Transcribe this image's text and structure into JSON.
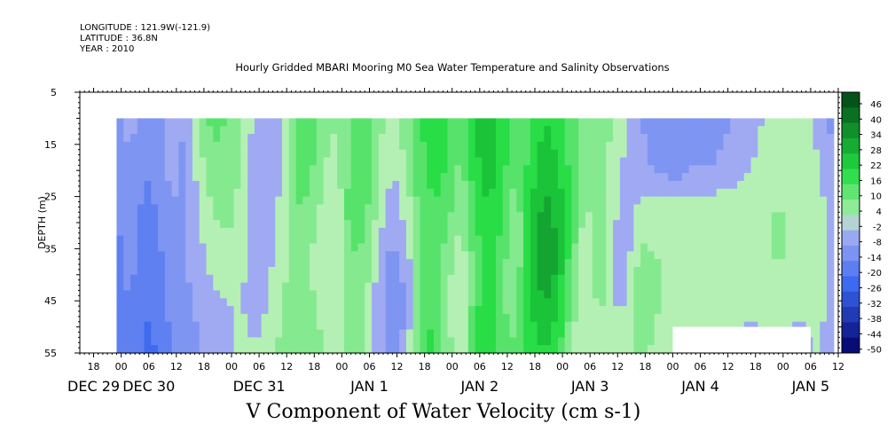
{
  "header": {
    "longitude": "LONGITUDE : 121.9W(-121.9)",
    "latitude": "LATITUDE : 36.8N",
    "year": "YEAR : 2010"
  },
  "chart_data": {
    "type": "heatmap",
    "title": "Hourly Gridded MBARI Mooring M0 Sea Water Temperature and Salinity Observations",
    "xlabel": "V Component of Water Velocity (cm s-1)",
    "ylabel": "DEPTH (m)",
    "x_range_hours": [
      -9,
      156
    ],
    "y_range_depth": [
      5,
      55
    ],
    "y_ticks": [
      5,
      15,
      25,
      35,
      45,
      55
    ],
    "x_hour_ticks": [
      {
        "h": -6,
        "label": "18"
      },
      {
        "h": 0,
        "label": "00"
      },
      {
        "h": 6,
        "label": "06"
      },
      {
        "h": 12,
        "label": "12"
      },
      {
        "h": 18,
        "label": "18"
      },
      {
        "h": 24,
        "label": "00"
      },
      {
        "h": 30,
        "label": "06"
      },
      {
        "h": 36,
        "label": "12"
      },
      {
        "h": 42,
        "label": "18"
      },
      {
        "h": 48,
        "label": "00"
      },
      {
        "h": 54,
        "label": "06"
      },
      {
        "h": 60,
        "label": "12"
      },
      {
        "h": 66,
        "label": "18"
      },
      {
        "h": 72,
        "label": "00"
      },
      {
        "h": 78,
        "label": "06"
      },
      {
        "h": 84,
        "label": "12"
      },
      {
        "h": 90,
        "label": "18"
      },
      {
        "h": 96,
        "label": "00"
      },
      {
        "h": 102,
        "label": "06"
      },
      {
        "h": 108,
        "label": "12"
      },
      {
        "h": 114,
        "label": "18"
      },
      {
        "h": 120,
        "label": "00"
      },
      {
        "h": 126,
        "label": "06"
      },
      {
        "h": 132,
        "label": "12"
      },
      {
        "h": 138,
        "label": "18"
      },
      {
        "h": 144,
        "label": "00"
      },
      {
        "h": 150,
        "label": "06"
      },
      {
        "h": 156,
        "label": "12"
      }
    ],
    "x_day_labels": [
      {
        "h": -6,
        "label": "DEC 29"
      },
      {
        "h": 6,
        "label": "DEC 30"
      },
      {
        "h": 30,
        "label": "DEC 31"
      },
      {
        "h": 54,
        "label": "JAN  1"
      },
      {
        "h": 78,
        "label": "JAN  2"
      },
      {
        "h": 102,
        "label": "JAN  3"
      },
      {
        "h": 126,
        "label": "JAN  4"
      },
      {
        "h": 150,
        "label": "JAN  5"
      }
    ],
    "colorbar_labels": [
      "46",
      "40",
      "34",
      "28",
      "22",
      "16",
      "10",
      "4",
      "-2",
      "-8",
      "-14",
      "-20",
      "-26",
      "-32",
      "-38",
      "-44",
      "-50"
    ],
    "colorbar_range": [
      -50,
      50
    ],
    "colorbar_colors": {
      "min": "#000066",
      "neg_mid": "#3a68f0",
      "near_zero_neg": "#b4b8f4",
      "near_zero_pos": "#b4f0b4",
      "pos_mid": "#20dc40",
      "max": "#004416"
    },
    "data_time_range_hours": [
      -1,
      155
    ],
    "data_depth_range": [
      10,
      55
    ],
    "time_slices": [
      {
        "h": -1,
        "v": [
          -10,
          -12,
          -14,
          -16,
          -16,
          -16
        ]
      },
      {
        "h": 2,
        "v": [
          -6,
          -8,
          -10,
          -12,
          -14,
          -14
        ]
      },
      {
        "h": 5,
        "v": [
          -12,
          -14,
          -16,
          -18,
          -20,
          -22
        ]
      },
      {
        "h": 8,
        "v": [
          -10,
          -12,
          -14,
          -16,
          -18,
          -20
        ]
      },
      {
        "h": 11,
        "v": [
          -4,
          -6,
          -8,
          -10,
          -12,
          -14
        ]
      },
      {
        "h": 14,
        "v": [
          -8,
          -10,
          -10,
          -8,
          -10,
          -14
        ]
      },
      {
        "h": 17,
        "v": [
          6,
          2,
          -2,
          -4,
          -6,
          -8
        ]
      },
      {
        "h": 20,
        "v": [
          12,
          8,
          4,
          0,
          -4,
          -6
        ]
      },
      {
        "h": 23,
        "v": [
          10,
          8,
          6,
          2,
          -2,
          -4
        ]
      },
      {
        "h": 26,
        "v": [
          6,
          4,
          2,
          0,
          -2,
          2
        ]
      },
      {
        "h": 29,
        "v": [
          -4,
          -6,
          -8,
          -6,
          -4,
          -2
        ]
      },
      {
        "h": 32,
        "v": [
          -6,
          -8,
          -6,
          -4,
          -2,
          0
        ]
      },
      {
        "h": 35,
        "v": [
          -4,
          -2,
          0,
          2,
          4,
          6
        ]
      },
      {
        "h": 38,
        "v": [
          12,
          14,
          10,
          6,
          8,
          10
        ]
      },
      {
        "h": 41,
        "v": [
          16,
          12,
          8,
          4,
          6,
          8
        ]
      },
      {
        "h": 44,
        "v": [
          6,
          4,
          2,
          -2,
          2,
          4
        ]
      },
      {
        "h": 47,
        "v": [
          4,
          2,
          0,
          -2,
          0,
          2
        ]
      },
      {
        "h": 50,
        "v": [
          10,
          12,
          14,
          10,
          8,
          6
        ]
      },
      {
        "h": 53,
        "v": [
          14,
          16,
          12,
          8,
          6,
          4
        ]
      },
      {
        "h": 56,
        "v": [
          6,
          4,
          2,
          -4,
          -6,
          -4
        ]
      },
      {
        "h": 59,
        "v": [
          2,
          -2,
          -6,
          -10,
          -12,
          -10
        ]
      },
      {
        "h": 62,
        "v": [
          8,
          4,
          0,
          -6,
          -8,
          -6
        ]
      },
      {
        "h": 65,
        "v": [
          16,
          14,
          12,
          10,
          12,
          14
        ]
      },
      {
        "h": 68,
        "v": [
          20,
          18,
          16,
          14,
          16,
          18
        ]
      },
      {
        "h": 71,
        "v": [
          18,
          16,
          12,
          6,
          4,
          6
        ]
      },
      {
        "h": 74,
        "v": [
          10,
          8,
          4,
          0,
          -2,
          0
        ]
      },
      {
        "h": 77,
        "v": [
          22,
          20,
          16,
          12,
          14,
          16
        ]
      },
      {
        "h": 80,
        "v": [
          28,
          26,
          22,
          20,
          22,
          24
        ]
      },
      {
        "h": 83,
        "v": [
          20,
          18,
          16,
          12,
          10,
          12
        ]
      },
      {
        "h": 86,
        "v": [
          12,
          10,
          6,
          4,
          8,
          10
        ]
      },
      {
        "h": 89,
        "v": [
          16,
          18,
          22,
          26,
          22,
          18
        ]
      },
      {
        "h": 92,
        "v": [
          22,
          26,
          30,
          34,
          28,
          22
        ]
      },
      {
        "h": 95,
        "v": [
          18,
          22,
          26,
          28,
          22,
          18
        ]
      },
      {
        "h": 98,
        "v": [
          12,
          14,
          16,
          12,
          8,
          4
        ]
      },
      {
        "h": 101,
        "v": [
          8,
          6,
          2,
          -2,
          -4,
          -2
        ]
      },
      {
        "h": 104,
        "v": [
          6,
          8,
          10,
          8,
          6,
          4
        ]
      },
      {
        "h": 107,
        "v": [
          4,
          2,
          0,
          -4,
          -2,
          0
        ]
      },
      {
        "h": 110,
        "v": [
          -2,
          -4,
          -6,
          -4,
          -2,
          0
        ]
      },
      {
        "h": 113,
        "v": [
          -8,
          -6,
          0,
          6,
          8,
          6
        ]
      },
      {
        "h": 117,
        "v": [
          -12,
          -10,
          2,
          4,
          4,
          2
        ]
      },
      {
        "h": 121,
        "v": [
          -14,
          -12,
          2,
          4,
          2,
          0
        ]
      },
      {
        "h": 125,
        "v": [
          -12,
          -8,
          0,
          2,
          2,
          -2
        ]
      },
      {
        "h": 129,
        "v": [
          -10,
          -8,
          2,
          4,
          2,
          -4
        ]
      },
      {
        "h": 133,
        "v": [
          -8,
          -6,
          2,
          4,
          2,
          -6
        ]
      },
      {
        "h": 137,
        "v": [
          -6,
          -2,
          2,
          4,
          2,
          -8
        ]
      },
      {
        "h": 141,
        "v": [
          0,
          2,
          4,
          4,
          2,
          -6
        ]
      },
      {
        "h": 145,
        "v": [
          4,
          4,
          4,
          4,
          2,
          -4
        ]
      },
      {
        "h": 148,
        "v": [
          2,
          2,
          4,
          2,
          0,
          -8
        ]
      },
      {
        "h": 151,
        "v": [
          -4,
          0,
          2,
          4,
          2,
          0
        ]
      },
      {
        "h": 155,
        "v": [
          -10,
          -8,
          -6,
          -4,
          -6,
          -8
        ]
      }
    ],
    "slice_depths": [
      10,
      19,
      28,
      37,
      46,
      55
    ],
    "missing_data": [
      {
        "h0": 120,
        "h1": 150,
        "d0": 50,
        "d1": 55
      }
    ]
  }
}
